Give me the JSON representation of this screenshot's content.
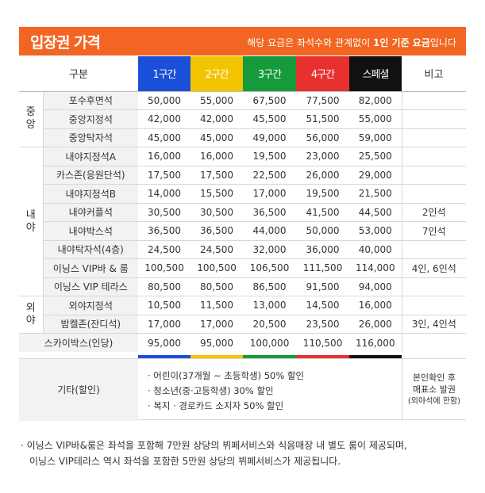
{
  "header": {
    "title": "입장권 가격",
    "note_prefix": "해당 요금은 좌석수와 관계없이 ",
    "note_bold": "1인 기준 요금",
    "note_suffix": "입니다"
  },
  "columns": {
    "category": "구분",
    "zone1": "1구간",
    "zone2": "2구간",
    "zone3": "3구간",
    "zone4": "4구간",
    "special": "스페셜",
    "remarks": "비고"
  },
  "colors": {
    "orange": "#f26522",
    "zone1": "#1a4fd8",
    "zone2": "#f5c400",
    "zone3": "#159a3c",
    "zone4": "#e8312f",
    "special": "#111111"
  },
  "groups": {
    "center": "중앙",
    "infield": "내야",
    "outfield": "외야"
  },
  "rows": [
    {
      "seat": "포수후면석",
      "p": [
        "50,000",
        "55,000",
        "67,500",
        "77,500",
        "82,000"
      ],
      "note": ""
    },
    {
      "seat": "중앙지정석",
      "p": [
        "42,000",
        "42,000",
        "45,500",
        "51,500",
        "55,000"
      ],
      "note": ""
    },
    {
      "seat": "중앙탁자석",
      "p": [
        "45,000",
        "45,000",
        "49,000",
        "56,000",
        "59,000"
      ],
      "note": ""
    },
    {
      "seat": "내야지정석A",
      "p": [
        "16,000",
        "16,000",
        "19,500",
        "23,000",
        "25,500"
      ],
      "note": ""
    },
    {
      "seat": "카스존(응원단석)",
      "p": [
        "17,500",
        "17,500",
        "22,500",
        "26,000",
        "29,000"
      ],
      "note": ""
    },
    {
      "seat": "내야지정석B",
      "p": [
        "14,000",
        "15,500",
        "17,000",
        "19,500",
        "21,500"
      ],
      "note": ""
    },
    {
      "seat": "내야커플석",
      "p": [
        "30,500",
        "30,500",
        "36,500",
        "41,500",
        "44,500"
      ],
      "note": "2인석"
    },
    {
      "seat": "내야박스석",
      "p": [
        "36,500",
        "36,500",
        "44,000",
        "50,000",
        "53,000"
      ],
      "note": "7인석"
    },
    {
      "seat": "내야탁자석(4층)",
      "p": [
        "24,500",
        "24,500",
        "32,000",
        "36,000",
        "40,000"
      ],
      "note": ""
    },
    {
      "seat": "이닝스 VIP바 & 룸",
      "p": [
        "100,500",
        "100,500",
        "106,500",
        "111,500",
        "114,000"
      ],
      "note": "4인, 6인석"
    },
    {
      "seat": "이닝스 VIP 테라스",
      "p": [
        "80,500",
        "80,500",
        "86,500",
        "91,500",
        "94,000"
      ],
      "note": ""
    },
    {
      "seat": "외야지정석",
      "p": [
        "10,500",
        "11,500",
        "13,000",
        "14,500",
        "16,000"
      ],
      "note": ""
    },
    {
      "seat": "밤켈존(잔디석)",
      "p": [
        "17,000",
        "17,000",
        "20,500",
        "23,500",
        "26,000"
      ],
      "note": "3인, 4인석"
    },
    {
      "seat": "스카이박스(인당)",
      "p": [
        "95,000",
        "95,000",
        "100,000",
        "110,500",
        "116,000"
      ],
      "note": ""
    }
  ],
  "etc": {
    "label": "기타(할인)",
    "discounts": [
      "· 어린이(37개월 ~ 초등학생) 50% 할인",
      "· 청소년(중·고등학생) 30% 할인",
      "· 복지 · 경로카드 소지자 50% 할인"
    ],
    "remark_line1": "본인확인 후",
    "remark_line2": "매표소 발권",
    "remark_line3": "(외야석에 한함)"
  },
  "footnote": {
    "line1": "· 이닝스 VIP바&룸은 좌석을 포함해 7만원 상당의 뷔페서비스와 식음매장 내 별도 룸이 제공되며,",
    "line2": "이닝스 VIP테라스 역시 좌석을 포함한 5만원 상당의 뷔페서비스가 제공됩니다."
  }
}
